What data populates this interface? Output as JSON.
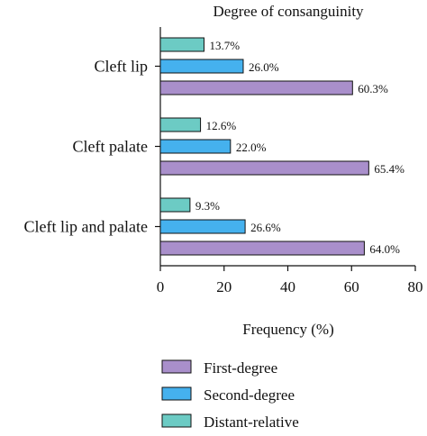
{
  "chart_data": {
    "type": "bar",
    "orientation": "horizontal",
    "title": "Degree of consanguinity",
    "xlabel": "Frequency (%)",
    "ylabel": "",
    "xlim": [
      0,
      80
    ],
    "xticks": [
      0,
      20,
      40,
      60,
      80
    ],
    "grid": false,
    "legend_position": "bottom-center",
    "categories": [
      "Cleft lip",
      "Cleft palate",
      "Cleft lip and palate"
    ],
    "series": [
      {
        "name": "First-degree",
        "color": "#a98fcb",
        "values": [
          60.3,
          65.4,
          64.0
        ],
        "labels": [
          "60.3%",
          "65.4%",
          "64.0%"
        ]
      },
      {
        "name": "Second-degree",
        "color": "#45b1ee",
        "values": [
          26.0,
          22.0,
          26.6
        ],
        "labels": [
          "26.0%",
          "22.0%",
          "26.6%"
        ]
      },
      {
        "name": "Distant-relative",
        "color": "#6ccbc4",
        "values": [
          13.7,
          12.6,
          9.3
        ],
        "labels": [
          "13.7%",
          "12.6%",
          "9.3%"
        ]
      }
    ]
  }
}
